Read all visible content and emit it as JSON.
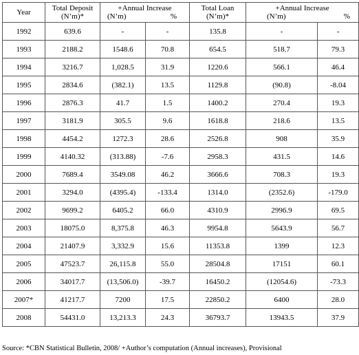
{
  "table": {
    "header": {
      "year": "Year",
      "deposit": [
        "Total Deposit",
        "(N’m)*"
      ],
      "deposit_increase": {
        "title": "+Annual Increase",
        "amount": "(N’m)",
        "percent": "%"
      },
      "loan": [
        "Total Loan",
        "(N’m)*"
      ],
      "loan_increase": {
        "title": "+Annual Increase",
        "amount": "(N’m)",
        "percent": "%"
      }
    },
    "rows": [
      [
        "1992",
        "639.6",
        "-",
        "-",
        "135.8",
        "-",
        "-"
      ],
      [
        "1993",
        "2188.2",
        "1548.6",
        "70.8",
        "654.5",
        "518.7",
        "79.3"
      ],
      [
        "1994",
        "3216.7",
        "1,028.5",
        "31.9",
        "1220.6",
        "566.1",
        "46.4"
      ],
      [
        "1995",
        "2834.6",
        "(382.1)",
        "13.5",
        "1129.8",
        "(90.8)",
        "-8.04"
      ],
      [
        "1996",
        "2876.3",
        "41.7",
        "1.5",
        "1400.2",
        "270.4",
        "19.3"
      ],
      [
        "1997",
        "3181.9",
        "305.5",
        "9.6",
        "1618.8",
        "218.6",
        "13.5"
      ],
      [
        "1998",
        "4454.2",
        "1272.3",
        "28.6",
        "2526.8",
        "908",
        "35.9"
      ],
      [
        "1999",
        "4140.32",
        "(313.88)",
        "-7.6",
        "2958.3",
        "431.5",
        "14.6"
      ],
      [
        "2000",
        "7689.4",
        "3549.08",
        "46.2",
        "3666.6",
        "708.3",
        "19.3"
      ],
      [
        "2001",
        "3294.0",
        "(4395.4)",
        "-133.4",
        "1314.0",
        "(2352.6)",
        "-179.0"
      ],
      [
        "2002",
        "9699.2",
        "6405.2",
        "66.0",
        "4310.9",
        "2996.9",
        "69.5"
      ],
      [
        "2003",
        "18075.0",
        "8,375.8",
        "46.3",
        "9954.8",
        "5643.9",
        "56.7"
      ],
      [
        "2004",
        "21407.9",
        "3,332.9",
        "15.6",
        "11353.8",
        "1399",
        "12.3"
      ],
      [
        "2005",
        "47523.7",
        "26,115.8",
        "55.0",
        "28504.8",
        "17151",
        "60.1"
      ],
      [
        "2006",
        "34017.7",
        "(13,506.0)",
        "-39.7",
        "16450.2",
        "(12054.6)",
        "-73.3"
      ],
      [
        "2007*",
        "41217.7",
        "7200",
        "17.5",
        "22850.2",
        "6400",
        "28.0"
      ],
      [
        "2008",
        "54431.0",
        "13,213.3",
        "24.3",
        "36793.7",
        "13943.5",
        "37.9"
      ]
    ],
    "source": "Source: *CBN Statistical Bulletin, 2008/ +Author’s computation (Annual increases), Provisional"
  }
}
